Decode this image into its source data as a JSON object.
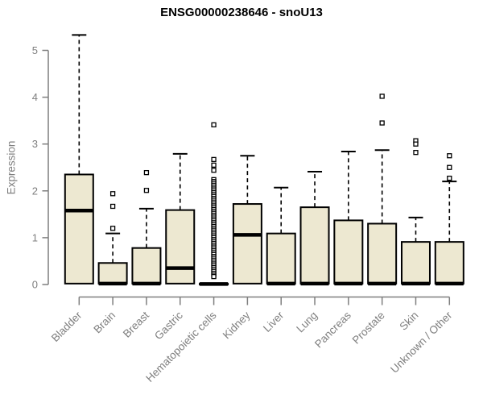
{
  "title": "ENSG00000238646 - snoU13",
  "colors": {
    "box_fill": "#EDE8D1",
    "box_border": "#000000",
    "median": "#000000",
    "whisker": "#000000",
    "outlier_fill": "#ffffff",
    "outlier_border": "#000000",
    "axis": "#7f7f7f",
    "tick_label": "#7f7f7f",
    "title_color": "#000000",
    "background": "#ffffff"
  },
  "chart_data": {
    "type": "boxplot",
    "title": "ENSG00000238646 - snoU13",
    "xlabel": "",
    "ylabel": "Expression",
    "ylim": [
      0,
      5.4
    ],
    "yticks": [
      0,
      1,
      2,
      3,
      4,
      5
    ],
    "grid": false,
    "legend": false,
    "categories": [
      "Bladder",
      "Brain",
      "Breast",
      "Gastric",
      "Hematopoietic cells",
      "Kidney",
      "Liver",
      "Lung",
      "Pancreas",
      "Prostate",
      "Skin",
      "Unknown / Other"
    ],
    "series": [
      {
        "name": "Bladder",
        "low": 0,
        "q1": 0.02,
        "median": 1.58,
        "q3": 2.35,
        "high": 5.33,
        "outliers": []
      },
      {
        "name": "Brain",
        "low": 0,
        "q1": 0.02,
        "median": 0.02,
        "q3": 0.46,
        "high": 1.09,
        "outliers": [
          1.94,
          1.67,
          1.2
        ]
      },
      {
        "name": "Breast",
        "low": 0,
        "q1": 0.02,
        "median": 0.02,
        "q3": 0.78,
        "high": 1.62,
        "outliers": [
          2.39,
          2.01
        ]
      },
      {
        "name": "Gastric",
        "low": 0,
        "q1": 0.02,
        "median": 0.35,
        "q3": 1.59,
        "high": 2.79,
        "outliers": []
      },
      {
        "name": "Hematopoietic cells",
        "low": 0,
        "q1": 0.0,
        "median": 0.01,
        "q3": 0.02,
        "high": 0.03,
        "outliers": [
          3.41,
          2.67,
          2.55,
          2.44,
          2.24,
          2.2,
          2.16,
          2.12,
          2.08,
          2.04,
          2.0,
          1.96,
          1.92,
          1.88,
          1.84,
          1.8,
          1.76,
          1.72,
          1.68,
          1.64,
          1.6,
          1.56,
          1.52,
          1.48,
          1.44,
          1.4,
          1.36,
          1.32,
          1.28,
          1.24,
          1.2,
          1.16,
          1.12,
          1.08,
          1.04,
          1.0,
          0.96,
          0.92,
          0.88,
          0.84,
          0.8,
          0.76,
          0.72,
          0.68,
          0.64,
          0.6,
          0.56,
          0.52,
          0.48,
          0.44,
          0.4,
          0.36,
          0.32,
          0.28,
          0.24,
          0.2,
          0.17
        ]
      },
      {
        "name": "Kidney",
        "low": 0,
        "q1": 0.02,
        "median": 1.06,
        "q3": 1.72,
        "high": 2.75,
        "outliers": []
      },
      {
        "name": "Liver",
        "low": 0,
        "q1": 0.02,
        "median": 0.02,
        "q3": 1.09,
        "high": 2.07,
        "outliers": []
      },
      {
        "name": "Lung",
        "low": 0,
        "q1": 0.02,
        "median": 0.02,
        "q3": 1.65,
        "high": 2.41,
        "outliers": []
      },
      {
        "name": "Pancreas",
        "low": 0,
        "q1": 0.02,
        "median": 0.02,
        "q3": 1.37,
        "high": 2.84,
        "outliers": []
      },
      {
        "name": "Prostate",
        "low": 0,
        "q1": 0.02,
        "median": 0.02,
        "q3": 1.3,
        "high": 2.87,
        "outliers": [
          4.02,
          3.45
        ]
      },
      {
        "name": "Skin",
        "low": 0,
        "q1": 0.02,
        "median": 0.02,
        "q3": 0.91,
        "high": 1.43,
        "outliers": [
          3.07,
          3.0,
          2.82
        ]
      },
      {
        "name": "Unknown / Other",
        "low": 0,
        "q1": 0.02,
        "median": 0.02,
        "q3": 0.91,
        "high": 2.2,
        "outliers": [
          2.75,
          2.5,
          2.27
        ]
      }
    ]
  }
}
